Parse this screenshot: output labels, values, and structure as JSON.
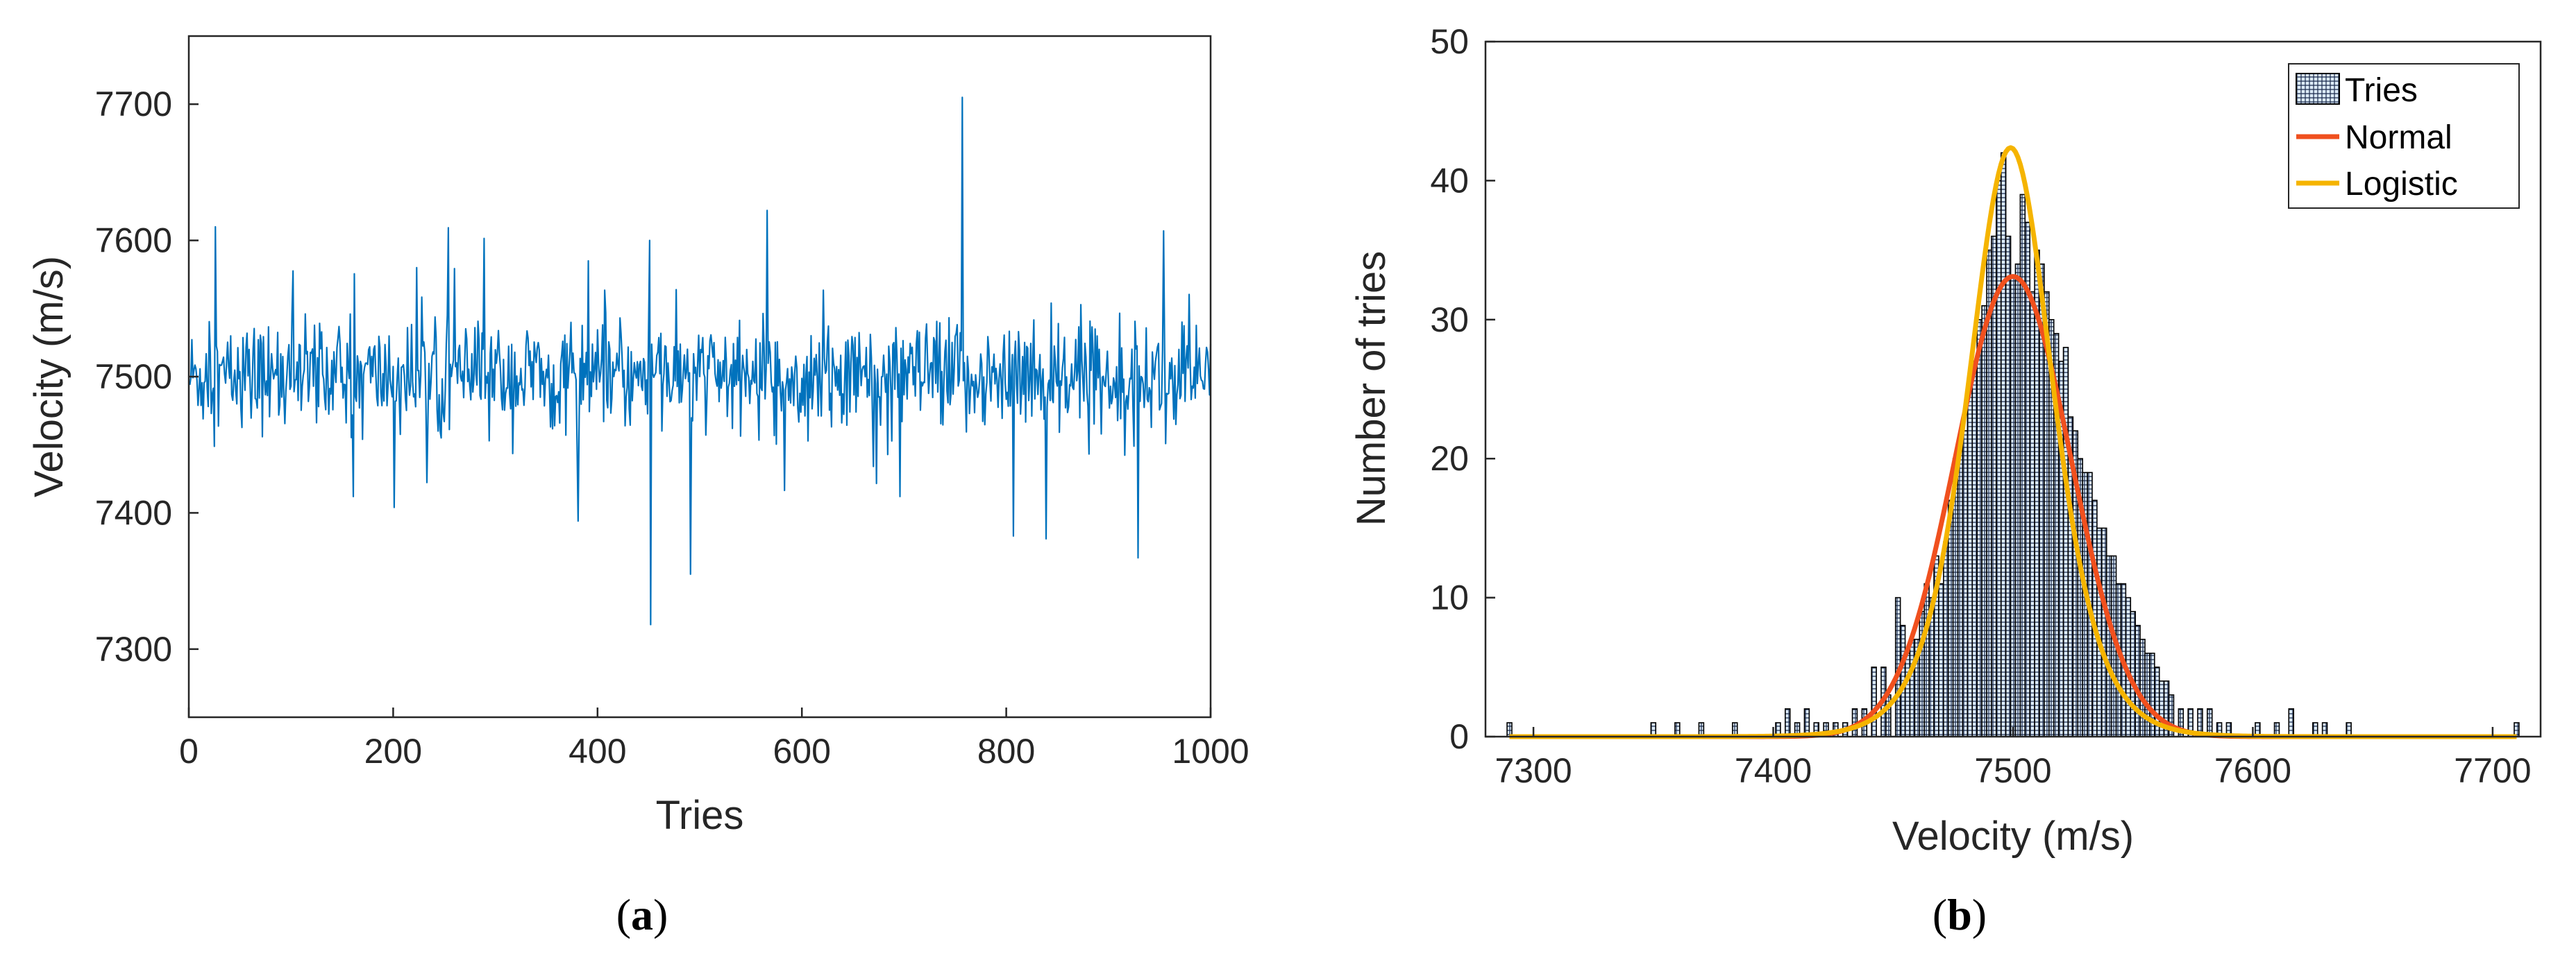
{
  "colors": {
    "series_a": "#0072BD",
    "hist_fill": "#DCEBFA",
    "hist_edge": "#000000",
    "normal": "#F0501E",
    "logistic": "#F5B400",
    "axis": "#262626"
  },
  "panel_labels": {
    "a": {
      "open": "(",
      "letter": "a",
      "close": ")"
    },
    "b": {
      "open": "(",
      "letter": "b",
      "close": ")"
    }
  },
  "chart_data": [
    {
      "type": "line",
      "xlabel": "Tries",
      "ylabel": "Velocity (m/s)",
      "xlim": [
        0,
        1000
      ],
      "ylim": [
        7250,
        7750
      ],
      "xticks": [
        0,
        200,
        400,
        600,
        800,
        1000
      ],
      "yticks": [
        7300,
        7400,
        7500,
        7600,
        7700
      ],
      "xtick_labels": [
        "0",
        "200",
        "400",
        "600",
        "800",
        "1000"
      ],
      "ytick_labels": [
        "7300",
        "7400",
        "7500",
        "7600",
        "7700"
      ],
      "grid": false,
      "series": [
        {
          "color": "#0072BD",
          "n_points": 1000,
          "mean": 7500,
          "std": 26,
          "notable_points": [
            {
              "x": 25,
              "y": 7610
            },
            {
              "x": 160,
              "y": 7412
            },
            {
              "x": 200,
              "y": 7404
            },
            {
              "x": 222,
              "y": 7580
            },
            {
              "x": 380,
              "y": 7394
            },
            {
              "x": 390,
              "y": 7585
            },
            {
              "x": 450,
              "y": 7600
            },
            {
              "x": 451,
              "y": 7318
            },
            {
              "x": 490,
              "y": 7355
            },
            {
              "x": 565,
              "y": 7622
            },
            {
              "x": 695,
              "y": 7412
            },
            {
              "x": 756,
              "y": 7705
            },
            {
              "x": 806,
              "y": 7383
            },
            {
              "x": 838,
              "y": 7381
            },
            {
              "x": 928,
              "y": 7367
            },
            {
              "x": 953,
              "y": 7607
            }
          ]
        }
      ]
    },
    {
      "type": "bar",
      "xlabel": "Velocity (m/s)",
      "ylabel": "Number of tries",
      "xlim": [
        7280,
        7720
      ],
      "ylim": [
        0,
        50
      ],
      "xticks": [
        7300,
        7400,
        7500,
        7600,
        7700
      ],
      "yticks": [
        0,
        10,
        20,
        30,
        40,
        50
      ],
      "xtick_labels": [
        "7300",
        "7400",
        "7500",
        "7600",
        "7700"
      ],
      "ytick_labels": [
        "0",
        "10",
        "20",
        "30",
        "40",
        "50"
      ],
      "grid": false,
      "legend_position": "top-right",
      "bin_width": 2,
      "histogram": {
        "name": "Tries",
        "bin_centers": [
          7290,
          7350,
          7360,
          7370,
          7384,
          7402,
          7406,
          7410,
          7414,
          7418,
          7422,
          7426,
          7430,
          7434,
          7438,
          7442,
          7446,
          7448,
          7452,
          7454,
          7456,
          7458,
          7460,
          7462,
          7464,
          7466,
          7468,
          7470,
          7472,
          7474,
          7476,
          7478,
          7480,
          7482,
          7484,
          7486,
          7488,
          7490,
          7492,
          7494,
          7496,
          7498,
          7500,
          7502,
          7504,
          7506,
          7508,
          7510,
          7512,
          7514,
          7516,
          7518,
          7520,
          7522,
          7524,
          7526,
          7528,
          7530,
          7532,
          7534,
          7536,
          7538,
          7540,
          7542,
          7544,
          7546,
          7548,
          7550,
          7552,
          7554,
          7556,
          7558,
          7560,
          7562,
          7564,
          7566,
          7570,
          7574,
          7578,
          7582,
          7586,
          7590,
          7602,
          7610,
          7616,
          7626,
          7630,
          7640,
          7710
        ],
        "counts": [
          1,
          1,
          1,
          1,
          1,
          1,
          2,
          1,
          2,
          1,
          1,
          1,
          1,
          2,
          2,
          5,
          5,
          3,
          10,
          8,
          6,
          7,
          7,
          9,
          11,
          10,
          13,
          11,
          14,
          17,
          20,
          21,
          22,
          25,
          27,
          30,
          31,
          35,
          36,
          40,
          42,
          36,
          33,
          34,
          39,
          37,
          32,
          35,
          34,
          32,
          30,
          29,
          27,
          28,
          23,
          22,
          20,
          19,
          19,
          17,
          15,
          15,
          13,
          13,
          11,
          11,
          10,
          9,
          8,
          7,
          6,
          6,
          5,
          4,
          4,
          3,
          2,
          2,
          2,
          2,
          1,
          1,
          1,
          1,
          2,
          1,
          1,
          1,
          1
        ]
      },
      "series": [
        {
          "name": "Normal",
          "color": "#F0501E",
          "type": "line",
          "mu": 7500,
          "sigma": 24.1,
          "n": 1000,
          "bin_width": 2
        },
        {
          "name": "Logistic",
          "color": "#F5B400",
          "type": "line",
          "mu": 7499,
          "s": 11.8,
          "n": 1000,
          "bin_width": 2
        }
      ]
    }
  ]
}
